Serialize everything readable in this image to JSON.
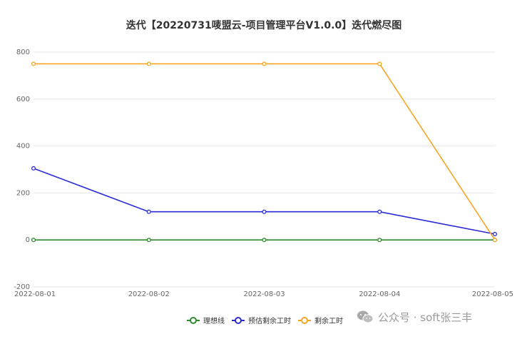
{
  "chart_data": {
    "type": "line",
    "title": "迭代【20220731唛盟云-项目管理平台V1.0.0】迭代燃尽图",
    "categories": [
      "2022-08-01",
      "2022-08-02",
      "2022-08-03",
      "2022-08-04",
      "2022-08-05"
    ],
    "ylim": [
      -200,
      800
    ],
    "yticks": [
      -200,
      0,
      200,
      400,
      600,
      800
    ],
    "grid": true,
    "legend_position": "bottom-center",
    "series": [
      {
        "name": "理想线",
        "color": "#2e8b2e",
        "values": [
          0,
          0,
          0,
          0,
          0
        ]
      },
      {
        "name": "预估剩余工时",
        "color": "#2b2bd6",
        "values": [
          305,
          120,
          120,
          120,
          25
        ]
      },
      {
        "name": "剩余工时",
        "color": "#f5a623",
        "values": [
          750,
          750,
          750,
          750,
          0
        ]
      }
    ]
  },
  "watermark": {
    "icon": "wechat-icon",
    "text": "公众号 · soft张三丰"
  }
}
